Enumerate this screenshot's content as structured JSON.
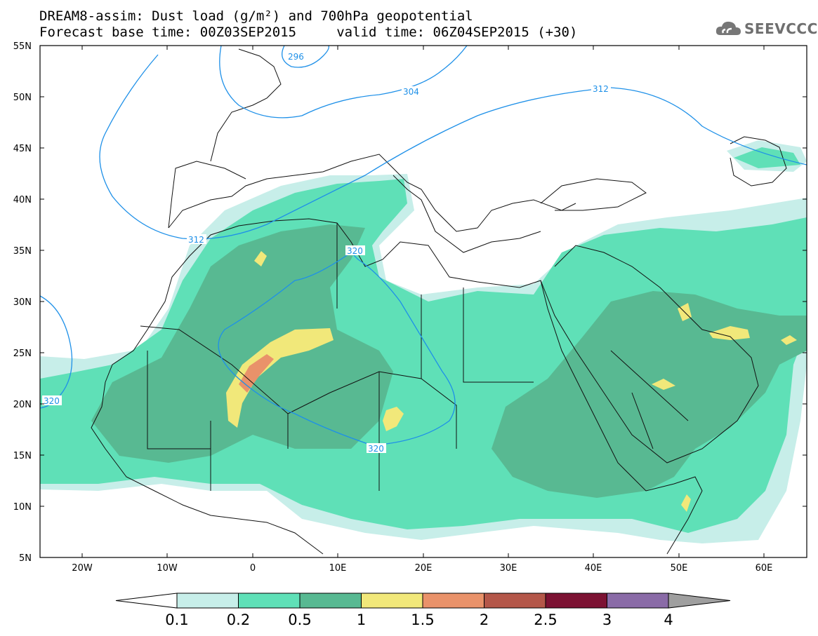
{
  "title": {
    "line1": "DREAM8-assim: Dust load (g/m²) and 700hPa geopotential",
    "line2": "Forecast base time: 00Z03SEP2015     valid time: 06Z04SEP2015 (+30)"
  },
  "logo": {
    "text": "SEEVCCC",
    "icon": "cloud-icon"
  },
  "map": {
    "projection": "lat-lon",
    "lon_range": [
      -25,
      65
    ],
    "lat_range": [
      5,
      55
    ],
    "lat_ticks": [
      "55N",
      "50N",
      "45N",
      "40N",
      "35N",
      "30N",
      "25N",
      "20N",
      "15N",
      "10N",
      "5N"
    ],
    "lon_ticks": [
      "20W",
      "10W",
      "0",
      "10E",
      "20E",
      "30E",
      "40E",
      "50E",
      "60E"
    ],
    "contour_labels": [
      "296",
      "304",
      "312",
      "312",
      "320",
      "320",
      "320"
    ]
  },
  "colorbar": {
    "labels": [
      "0.1",
      "0.2",
      "0.5",
      "1",
      "1.5",
      "2",
      "2.5",
      "3",
      "4"
    ],
    "colors": [
      "#ffffff",
      "#c7eee9",
      "#5fe0b7",
      "#58b992",
      "#f1e87a",
      "#e9926a",
      "#b45749",
      "#7c1233",
      "#8a6ba7",
      "#9f9f9f"
    ]
  },
  "colors": {
    "contour": "#1e90e8",
    "dust_01": "#c7eee9",
    "dust_02": "#5fe0b7",
    "dust_05": "#58b992",
    "dust_1": "#f1e87a",
    "dust_15": "#e9926a"
  }
}
